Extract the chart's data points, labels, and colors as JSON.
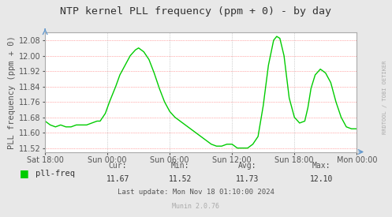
{
  "title": "NTP kernel PLL frequency (ppm + 0) - by day",
  "ylabel": "PLL frequency (ppm + 0)",
  "line_color": "#00cc00",
  "bg_color": "#ffffff",
  "plot_bg_color": "#e8e8e8",
  "right_label": "RRDTOOL / TOBI OETIKER",
  "legend_label": "pll-freq",
  "legend_color": "#00cc00",
  "cur": "11.67",
  "min_val": "11.52",
  "avg": "11.73",
  "max_val": "12.10",
  "last_update": "Mon Nov 18 01:10:00 2024",
  "footer": "Munin 2.0.76",
  "x_ticks_labels": [
    "Sat 18:00",
    "Sun 00:00",
    "Sun 06:00",
    "Sun 12:00",
    "Sun 18:00",
    "Mon 00:00"
  ],
  "ylim": [
    11.5,
    12.12
  ],
  "y_ticks": [
    11.52,
    11.6,
    11.68,
    11.76,
    11.84,
    11.92,
    12.0,
    12.08
  ],
  "x_ticks": [
    0,
    6,
    12,
    18,
    24,
    30
  ],
  "data_x": [
    0,
    0.5,
    1.0,
    1.5,
    2.0,
    2.5,
    3.0,
    3.5,
    4.0,
    4.5,
    5.0,
    5.3,
    5.8,
    6.2,
    6.8,
    7.2,
    7.8,
    8.2,
    8.7,
    9.0,
    9.5,
    10.0,
    10.5,
    11.0,
    11.5,
    12.0,
    12.5,
    13.0,
    13.5,
    14.0,
    14.5,
    15.0,
    15.5,
    16.0,
    16.5,
    17.0,
    17.5,
    18.0,
    18.5,
    19.0,
    19.5,
    20.0,
    20.5,
    21.0,
    21.5,
    22.0,
    22.3,
    22.6,
    23.0,
    23.5,
    24.0,
    24.5,
    25.0,
    25.3,
    25.6,
    26.0,
    26.5,
    27.0,
    27.5,
    28.0,
    28.5,
    29.0,
    29.5,
    30.0
  ],
  "data_y": [
    11.66,
    11.64,
    11.63,
    11.64,
    11.63,
    11.63,
    11.64,
    11.64,
    11.64,
    11.65,
    11.66,
    11.66,
    11.7,
    11.76,
    11.84,
    11.9,
    11.96,
    12.0,
    12.03,
    12.04,
    12.02,
    11.98,
    11.91,
    11.83,
    11.76,
    11.71,
    11.68,
    11.66,
    11.64,
    11.62,
    11.6,
    11.58,
    11.56,
    11.54,
    11.53,
    11.53,
    11.54,
    11.54,
    11.52,
    11.52,
    11.52,
    11.54,
    11.58,
    11.74,
    11.95,
    12.08,
    12.1,
    12.09,
    12.0,
    11.78,
    11.68,
    11.65,
    11.66,
    11.73,
    11.83,
    11.9,
    11.93,
    11.91,
    11.86,
    11.76,
    11.68,
    11.63,
    11.62,
    11.62
  ]
}
